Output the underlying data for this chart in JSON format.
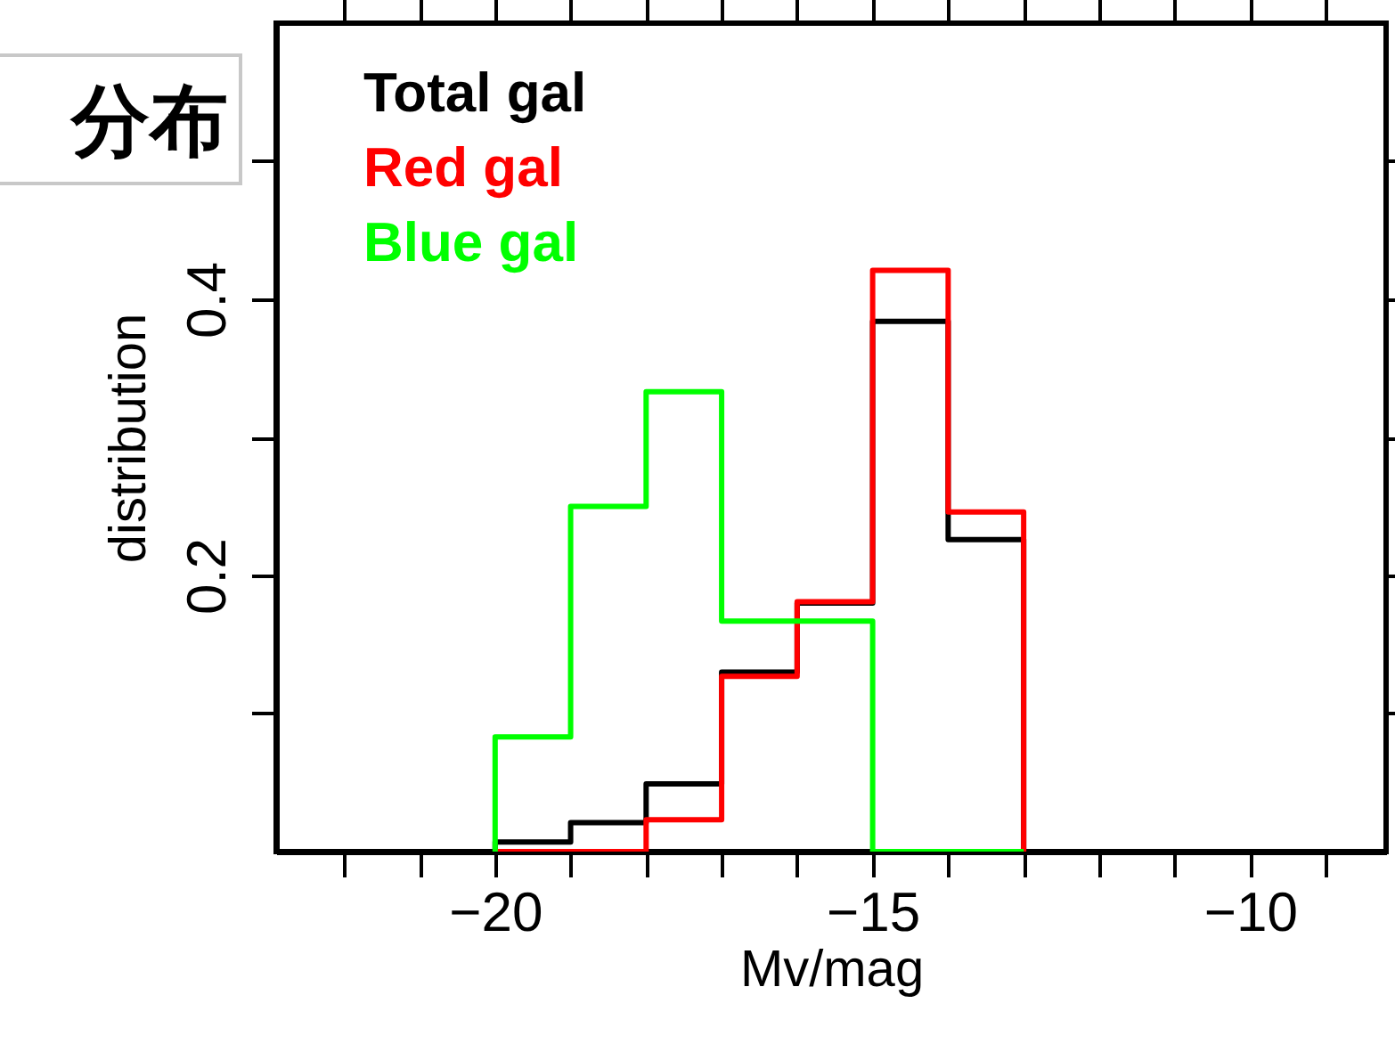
{
  "chart_data": {
    "type": "histogram",
    "title": "分布",
    "xlabel": "Mv/mag",
    "ylabel": "distribution",
    "bins": [
      -20,
      -19,
      -18,
      -17,
      -16,
      -15,
      -14,
      -13
    ],
    "series": [
      {
        "name": "Total gal",
        "color": "#000000",
        "values": [
          0.007,
          0.021,
          0.049,
          0.13,
          0.18,
          0.384,
          0.226
        ]
      },
      {
        "name": "Red gal",
        "color": "#ff0000",
        "values": [
          0,
          0,
          0.023,
          0.127,
          0.181,
          0.421,
          0.246
        ]
      },
      {
        "name": "Blue gal",
        "color": "#00ff00",
        "values": [
          0.083,
          0.25,
          0.333,
          0.167,
          0.167,
          0,
          0
        ]
      }
    ],
    "xlim": [
      -22.9,
      -8.2
    ],
    "xticks": [
      {
        "value": -22,
        "label": null
      },
      {
        "value": -21,
        "label": null
      },
      {
        "value": -20,
        "label": "−20"
      },
      {
        "value": -19,
        "label": null
      },
      {
        "value": -18,
        "label": null
      },
      {
        "value": -17,
        "label": null
      },
      {
        "value": -16,
        "label": null
      },
      {
        "value": -15,
        "label": "−15"
      },
      {
        "value": -14,
        "label": null
      },
      {
        "value": -13,
        "label": null
      },
      {
        "value": -12,
        "label": null
      },
      {
        "value": -11,
        "label": null
      },
      {
        "value": -10,
        "label": "−10"
      },
      {
        "value": -9,
        "label": null
      }
    ],
    "ylim": [
      0,
      0.6
    ],
    "yticks": [
      {
        "value": 0.1,
        "label": null
      },
      0.2,
      {
        "value": 0.3,
        "label": null
      },
      0.4,
      {
        "value": 0.5,
        "label": null
      }
    ],
    "legend": "top left",
    "grid": false
  }
}
